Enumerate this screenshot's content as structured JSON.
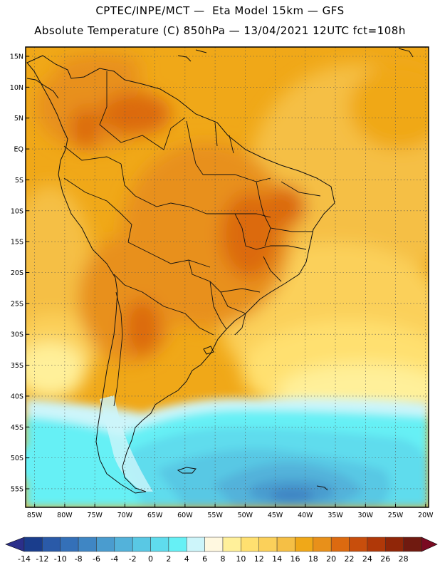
{
  "title": {
    "line1": "CPTEC/INPE/MCT —  Eta Model 15km — GFS",
    "line2": "Absolute Temperature (C) 850hPa — 13/04/2021 12UTC fct=108h"
  },
  "axes": {
    "lat_labels": [
      "15N",
      "10N",
      "5N",
      "EQ",
      "5S",
      "10S",
      "15S",
      "20S",
      "25S",
      "30S",
      "35S",
      "40S",
      "45S",
      "50S",
      "55S"
    ],
    "lon_labels": [
      "85W",
      "80W",
      "75W",
      "70W",
      "65W",
      "60W",
      "55W",
      "50W",
      "45W",
      "40W",
      "35W",
      "30W",
      "25W",
      "20W"
    ]
  },
  "colorbar": {
    "labels": [
      "-14",
      "-12",
      "-10",
      "-8",
      "-6",
      "-4",
      "-2",
      "0",
      "2",
      "4",
      "6",
      "8",
      "10",
      "12",
      "14",
      "16",
      "18",
      "20",
      "22",
      "24",
      "26",
      "28"
    ],
    "colors": [
      "#1a3d8c",
      "#2a5aa8",
      "#3470b8",
      "#3f86c4",
      "#4a9ccf",
      "#53b2da",
      "#59c8e4",
      "#5fdced",
      "#66f0f5",
      "#cdf5fa",
      "#fff8e0",
      "#fff09a",
      "#ffe070",
      "#fbd05a",
      "#f5bf45",
      "#f0a818",
      "#e8901a",
      "#dc6a10",
      "#c84e0c",
      "#b03808",
      "#902608",
      "#701a10"
    ],
    "under_color": "#2b2f8a",
    "over_color": "#7a0a22"
  }
}
